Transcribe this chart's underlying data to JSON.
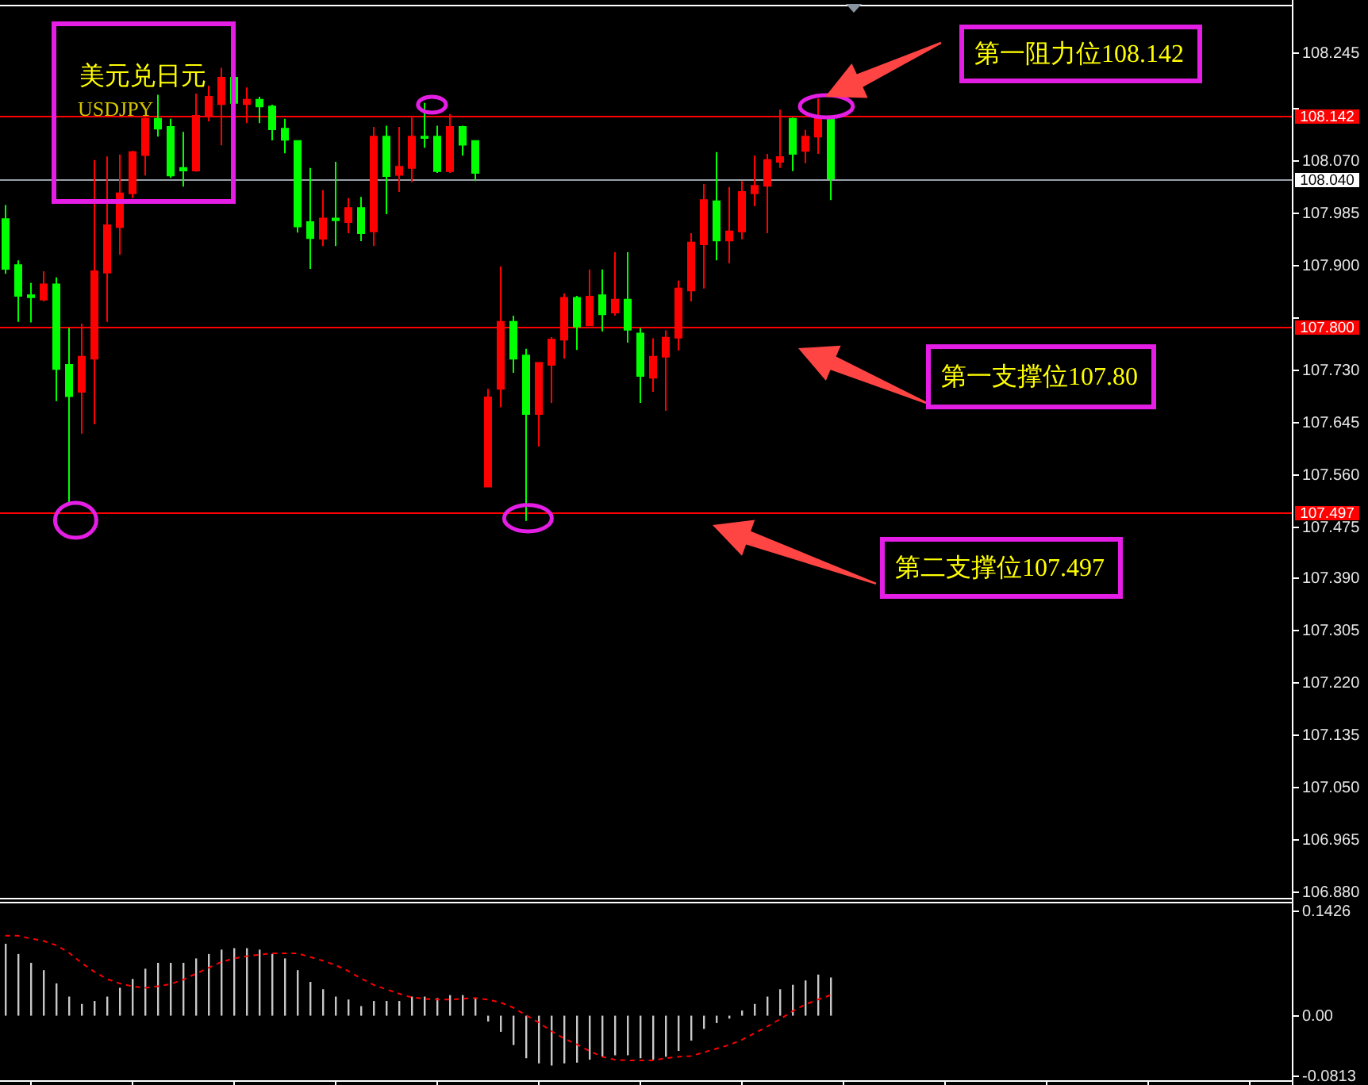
{
  "chart_data": [
    {
      "type": "candlestick",
      "title": "美元兑日元",
      "subtitle": "USDJPY",
      "categories": [
        null,
        null,
        null,
        null,
        null,
        null,
        null,
        null,
        null,
        null,
        null,
        null,
        null,
        null,
        null,
        null,
        null,
        null,
        null,
        null,
        null,
        null,
        null,
        null,
        null,
        null,
        null,
        null,
        null,
        null,
        null,
        null,
        null,
        null,
        null,
        null,
        null,
        null,
        null,
        null,
        null,
        null,
        null,
        null,
        null,
        null,
        null,
        null,
        null,
        null,
        null,
        null,
        null,
        null,
        null,
        null,
        null,
        null,
        null,
        null,
        null,
        null,
        null,
        null,
        null,
        null,
        null,
        null,
        null,
        null,
        null,
        null,
        null,
        null,
        null,
        null,
        null,
        null,
        null,
        null,
        null,
        null,
        null,
        null,
        null,
        null,
        null,
        null,
        null,
        null,
        null,
        null,
        null,
        null,
        null,
        null,
        null,
        null,
        null,
        null,
        null,
        null
      ],
      "ohlc": [
        [
          107.974,
          107.997,
          107.885,
          107.893
        ],
        [
          107.899,
          107.907,
          107.807,
          107.849
        ],
        [
          107.85,
          107.87,
          107.806,
          107.847
        ],
        [
          107.843,
          107.889,
          107.84,
          107.868
        ],
        [
          107.868,
          107.879,
          107.678,
          107.73
        ],
        [
          107.737,
          107.797,
          107.513,
          107.686
        ],
        [
          107.693,
          107.804,
          107.625,
          107.75
        ],
        [
          107.747,
          108.07,
          107.64,
          107.889
        ],
        [
          107.887,
          108.076,
          107.807,
          107.964
        ],
        [
          107.961,
          108.079,
          107.916,
          108.016
        ],
        [
          108.016,
          108.085,
          108.008,
          108.083
        ],
        [
          108.078,
          108.139,
          108.045,
          108.137
        ],
        [
          108.137,
          108.176,
          108.108,
          108.121
        ],
        [
          108.124,
          108.137,
          108.041,
          108.045
        ],
        [
          108.057,
          108.116,
          108.027,
          108.053
        ],
        [
          108.053,
          108.178,
          108.051,
          108.142
        ],
        [
          108.141,
          108.191,
          108.133,
          108.173
        ],
        [
          108.161,
          108.22,
          108.094,
          108.204
        ],
        [
          108.204,
          108.206,
          108.161,
          108.163
        ],
        [
          108.161,
          108.188,
          108.13,
          108.168
        ],
        [
          108.168,
          108.173,
          108.13,
          108.157
        ],
        [
          108.157,
          108.16,
          108.102,
          108.12
        ],
        [
          108.121,
          108.137,
          108.081,
          108.103
        ],
        [
          108.101,
          108.101,
          107.952,
          107.962
        ],
        [
          107.969,
          108.057,
          107.893,
          107.943
        ],
        [
          107.942,
          108.021,
          107.93,
          107.975
        ],
        [
          107.975,
          108.067,
          107.93,
          107.972
        ],
        [
          107.969,
          108.008,
          107.951,
          107.992
        ],
        [
          107.992,
          108.01,
          107.938,
          107.951
        ],
        [
          107.954,
          108.124,
          107.93,
          108.108
        ],
        [
          108.108,
          108.126,
          107.982,
          108.044
        ],
        [
          108.046,
          108.124,
          108.018,
          108.059
        ],
        [
          108.057,
          108.139,
          108.034,
          108.108
        ],
        [
          108.108,
          108.163,
          108.09,
          108.106
        ],
        [
          108.108,
          108.126,
          108.049,
          108.052
        ],
        [
          108.052,
          108.145,
          108.049,
          108.124
        ],
        [
          108.124,
          108.126,
          108.077,
          108.095
        ],
        [
          108.101,
          108.101,
          108.036,
          108.049
        ],
        [
          107.539,
          107.698,
          107.539,
          107.684
        ],
        [
          107.698,
          107.897,
          107.668,
          107.807
        ],
        [
          107.807,
          107.817,
          107.724,
          107.747
        ],
        [
          107.752,
          107.763,
          107.483,
          107.657
        ],
        [
          107.657,
          107.741,
          107.604,
          107.74
        ],
        [
          107.737,
          107.782,
          107.675,
          107.778
        ],
        [
          107.778,
          107.853,
          107.747,
          107.846
        ],
        [
          107.846,
          107.849,
          107.761,
          107.799
        ],
        [
          107.801,
          107.892,
          107.801,
          107.848
        ],
        [
          107.85,
          107.892,
          107.791,
          107.819
        ],
        [
          107.822,
          107.92,
          107.817,
          107.843
        ],
        [
          107.843,
          107.92,
          107.773,
          107.794
        ],
        [
          107.788,
          107.797,
          107.675,
          107.719
        ],
        [
          107.716,
          107.78,
          107.693,
          107.75
        ],
        [
          107.75,
          107.793,
          107.662,
          107.781
        ],
        [
          107.781,
          107.874,
          107.76,
          107.861
        ],
        [
          107.858,
          107.951,
          107.84,
          107.936
        ],
        [
          107.933,
          108.031,
          107.861,
          108.005
        ],
        [
          108.003,
          108.083,
          107.907,
          107.939
        ],
        [
          107.939,
          108.026,
          107.902,
          107.954
        ],
        [
          107.954,
          108.036,
          107.941,
          108.018
        ],
        [
          108.016,
          108.077,
          107.995,
          108.028
        ],
        [
          108.028,
          108.08,
          107.951,
          108.07
        ],
        [
          108.067,
          108.152,
          108.057,
          108.075
        ],
        [
          108.137,
          108.139,
          108.052,
          108.08
        ],
        [
          108.085,
          108.119,
          108.065,
          108.108
        ],
        [
          108.108,
          108.17,
          108.08,
          108.137
        ],
        [
          108.137,
          108.137,
          108.005,
          108.04
        ],
        null,
        null,
        null,
        null,
        null,
        null,
        null,
        null,
        null,
        null,
        null,
        null,
        null,
        null,
        null,
        null,
        null,
        null,
        null,
        null,
        null,
        null,
        null,
        null,
        null,
        null,
        null,
        null,
        null,
        null,
        null,
        null,
        null,
        null,
        null,
        null
      ],
      "colors": [
        "#00ff00",
        "#00ff00",
        "#00ff00",
        "#ff0000",
        "#00ff00",
        "#00ff00",
        "#ff0000",
        "#ff0000",
        "#ff0000",
        "#ff0000",
        "#ff0000",
        "#ff0000",
        "#00ff00",
        "#00ff00",
        "#00ff00",
        "#ff0000",
        "#ff0000",
        "#ff0000",
        "#00ff00",
        "#ff0000",
        "#00ff00",
        "#00ff00",
        "#00ff00",
        "#00ff00",
        "#00ff00",
        "#ff0000",
        "#00ff00",
        "#ff0000",
        "#00ff00",
        "#ff0000",
        "#00ff00",
        "#ff0000",
        "#ff0000",
        "#00ff00",
        "#00ff00",
        "#ff0000",
        "#00ff00",
        "#00ff00",
        "#ff0000",
        "#ff0000",
        "#00ff00",
        "#00ff00",
        "#ff0000",
        "#ff0000",
        "#ff0000",
        "#00ff00",
        "#ff0000",
        "#00ff00",
        "#ff0000",
        "#00ff00",
        "#00ff00",
        "#ff0000",
        "#ff0000",
        "#ff0000",
        "#ff0000",
        "#ff0000",
        "#00ff00",
        "#ff0000",
        "#ff0000",
        "#ff0000",
        "#ff0000",
        "#ff0000",
        "#00ff00",
        "#ff0000",
        "#ff0000",
        "#00ff00",
        null,
        null,
        null,
        null,
        null,
        null,
        null,
        null,
        null,
        null,
        null,
        null,
        null,
        null,
        null,
        null,
        null,
        null,
        null,
        null,
        null,
        null,
        null,
        null,
        null,
        null,
        null,
        null,
        null,
        null,
        null,
        null,
        null,
        null,
        null,
        null
      ],
      "ylim": [
        106.87,
        108.32
      ],
      "yticks": [
        {
          "value": 106.88,
          "label": "106.880"
        },
        106.965,
        {
          "value": 107.05,
          "label": "107.050"
        },
        107.135,
        {
          "value": 107.22,
          "label": "107.220"
        },
        107.305,
        {
          "value": 107.39,
          "label": "107.390"
        },
        107.475,
        {
          "value": 107.56,
          "label": "107.560"
        },
        107.645,
        {
          "value": 107.73,
          "label": "107.730"
        },
        {
          "value": 107.815,
          "label": null
        },
        {
          "value": 107.9,
          "label": "107.900"
        },
        107.985,
        {
          "value": 108.07,
          "label": "108.070"
        },
        {
          "value": 108.155,
          "label": null
        },
        108.245
      ],
      "tick_labels": "y",
      "ref_lines": [
        {
          "axis": "y",
          "value": 108.142,
          "label": "108.142",
          "color": "#ff0000"
        },
        {
          "axis": "y",
          "value": 108.04,
          "label": "108.040",
          "color": "#98a0a8"
        },
        {
          "axis": "y",
          "value": 107.8,
          "label": "107.800",
          "color": "#ff0000"
        },
        {
          "axis": "y",
          "value": 107.497,
          "label": "107.497",
          "color": "#ff0000"
        }
      ],
      "annotations": [
        {
          "text": "第一阻力位108.142",
          "y": 108.142
        },
        {
          "text": "第一支撑位107.80",
          "y": 107.8
        },
        {
          "text": "第二支撑位107.497",
          "y": 107.497
        }
      ]
    },
    {
      "type": "bar",
      "categories": [
        null,
        null,
        null,
        null,
        null,
        null,
        null,
        null,
        null,
        null,
        null,
        null,
        null,
        null,
        null,
        null,
        null,
        null,
        null,
        null,
        null,
        null,
        null,
        null,
        null,
        null,
        null,
        null,
        null,
        null,
        null,
        null,
        null,
        null,
        null,
        null,
        null,
        null,
        null,
        null,
        null,
        null,
        null,
        null,
        null,
        null,
        null,
        null,
        null,
        null,
        null,
        null,
        null,
        null,
        null,
        null,
        null,
        null,
        null,
        null,
        null,
        null,
        null,
        null,
        null,
        null,
        null,
        null,
        null,
        null,
        null,
        null,
        null,
        null,
        null,
        null,
        null,
        null,
        null,
        null,
        null,
        null,
        null,
        null,
        null,
        null,
        null,
        null,
        null,
        null,
        null,
        null,
        null,
        null,
        null,
        null,
        null,
        null,
        null,
        null,
        null,
        null
      ],
      "series": [
        {
          "type": "bar",
          "color": "#c8c8c8",
          "values": [
            0.098,
            0.084,
            0.072,
            0.062,
            0.044,
            0.026,
            0.016,
            0.02,
            0.026,
            0.038,
            0.05,
            0.064,
            0.072,
            0.072,
            0.072,
            0.078,
            0.084,
            0.09,
            0.092,
            0.092,
            0.09,
            0.084,
            0.078,
            0.062,
            0.046,
            0.036,
            0.026,
            0.022,
            0.013,
            0.02,
            0.02,
            0.02,
            0.026,
            0.026,
            0.024,
            0.028,
            0.028,
            0.024,
            -0.008,
            -0.022,
            -0.04,
            -0.058,
            -0.065,
            -0.068,
            -0.065,
            -0.064,
            -0.06,
            -0.056,
            -0.054,
            -0.054,
            -0.058,
            -0.06,
            -0.056,
            -0.048,
            -0.034,
            -0.018,
            -0.01,
            -0.004,
            0.007,
            0.016,
            0.026,
            0.036,
            0.042,
            0.048,
            0.056,
            0.052,
            null,
            null,
            null,
            null,
            null,
            null,
            null,
            null,
            null,
            null,
            null,
            null,
            null,
            null,
            null,
            null,
            null,
            null,
            null,
            null,
            null,
            null,
            null,
            null,
            null,
            null,
            null,
            null,
            null,
            null,
            null,
            null,
            null,
            null,
            null,
            null
          ]
        },
        {
          "type": "line",
          "color": "#ff0000",
          "line_style": "dotted",
          "values": [
            0.109,
            0.109,
            0.105,
            0.102,
            0.096,
            0.086,
            0.072,
            0.06,
            0.05,
            0.044,
            0.04,
            0.038,
            0.04,
            0.043,
            0.049,
            0.057,
            0.065,
            0.073,
            0.078,
            0.081,
            0.083,
            0.085,
            0.085,
            0.085,
            0.08,
            0.075,
            0.069,
            0.061,
            0.051,
            0.042,
            0.036,
            0.03,
            0.025,
            0.023,
            0.022,
            0.022,
            0.023,
            0.024,
            0.022,
            0.018,
            0.011,
            0.001,
            -0.009,
            -0.021,
            -0.031,
            -0.039,
            -0.048,
            -0.056,
            -0.06,
            -0.061,
            -0.061,
            -0.061,
            -0.058,
            -0.056,
            -0.055,
            -0.05,
            -0.045,
            -0.04,
            -0.033,
            -0.024,
            -0.015,
            -0.005,
            0.006,
            0.015,
            0.022,
            0.028,
            null,
            null,
            null,
            null,
            null,
            null,
            null,
            null,
            null,
            null,
            null,
            null,
            null,
            null,
            null,
            null,
            null,
            null,
            null,
            null,
            null,
            null,
            null,
            null,
            null,
            null,
            null,
            null,
            null,
            null,
            null,
            null,
            null,
            null,
            null,
            null
          ]
        }
      ],
      "ylim": [
        -0.088,
        0.153
      ],
      "yticks": [
        0.1426,
        {
          "value": 0,
          "label": "0.00"
        },
        -0.0813
      ],
      "tick_labels": "y"
    }
  ]
}
